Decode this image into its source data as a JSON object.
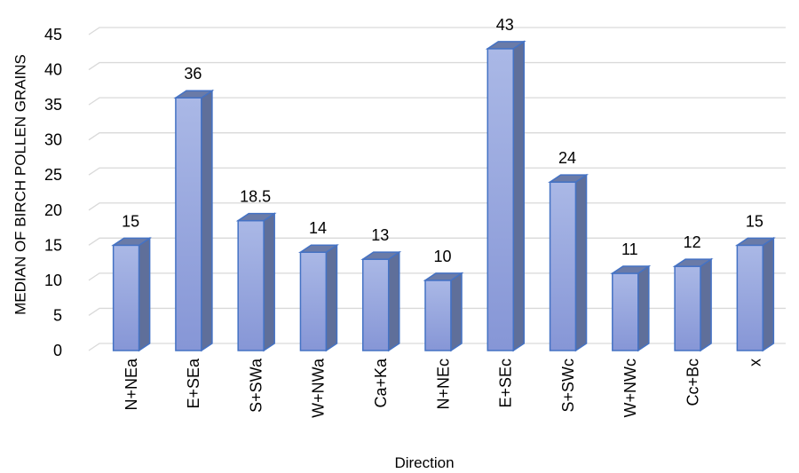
{
  "chart_data": {
    "type": "bar",
    "title": "",
    "xlabel": "Direction",
    "ylabel": "MEDIAN OF BIRCH POLLEN GRAINS",
    "categories": [
      "N+NEa",
      "E+SEa",
      "S+SWa",
      "W+NWa",
      "Ca+Ka",
      "N+NEc",
      "E+SEc",
      "S+SWc",
      "W+NWc",
      "Cc+Bc",
      "x"
    ],
    "values": [
      15,
      36,
      18.5,
      14,
      13,
      10,
      43,
      24,
      11,
      12,
      15
    ],
    "data_labels": [
      "15",
      "36",
      "18.5",
      "14",
      "13",
      "10",
      "43",
      "24",
      "11",
      "12",
      "15"
    ],
    "yticks": [
      "0",
      "5",
      "10",
      "15",
      "20",
      "25",
      "30",
      "35",
      "40",
      "45"
    ],
    "ylim": [
      0,
      45
    ],
    "grid": true,
    "legend": "none",
    "bar_style": "3d-column",
    "colors": {
      "bar_front_top": "#aab8e6",
      "bar_front_bottom": "#8696d6",
      "bar_side": "#5f6f9a",
      "bar_top": "#6a7ba8",
      "bar_outline": "#4472c4",
      "gridline": "#d9d9d9"
    }
  }
}
